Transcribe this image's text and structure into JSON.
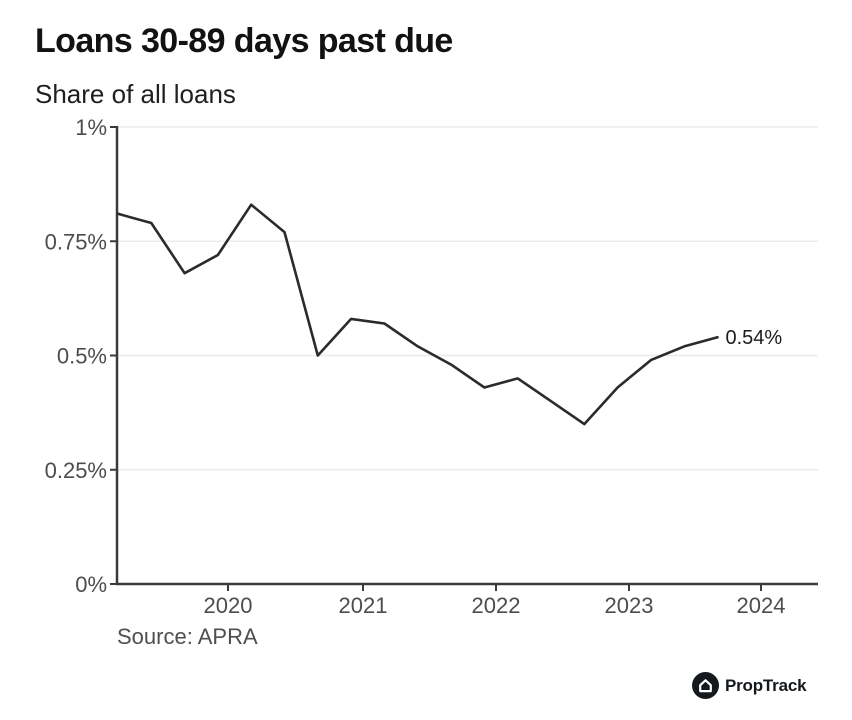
{
  "header": {
    "title": "Loans 30-89 days past due",
    "subtitle": "Share of all loans"
  },
  "footer": {
    "source": "Source: APRA",
    "brand": "PropTrack",
    "brand_icon": "house-icon"
  },
  "chart_data": {
    "type": "line",
    "title": "Loans 30-89 days past due",
    "subtitle": "Share of all loans",
    "source": "Source: APRA",
    "unit": "%",
    "x": [
      "Mar 2019",
      "Jun 2019",
      "Sep 2019",
      "Dec 2019",
      "Mar 2020",
      "Jun 2020",
      "Sep 2020",
      "Dec 2020",
      "Mar 2021",
      "Jun 2021",
      "Sep 2021",
      "Dec 2021",
      "Mar 2022",
      "Jun 2022",
      "Sep 2022",
      "Dec 2022",
      "Mar 2023",
      "Jun 2023",
      "Sep 2023"
    ],
    "values": [
      0.81,
      0.79,
      0.68,
      0.72,
      0.83,
      0.77,
      0.5,
      0.58,
      0.57,
      0.52,
      0.48,
      0.43,
      0.45,
      0.4,
      0.35,
      0.43,
      0.49,
      0.52,
      0.54
    ],
    "end_label": "0.54%",
    "ylim": [
      0,
      1
    ],
    "yticks": [
      {
        "value": 0,
        "label": "0%"
      },
      {
        "value": 0.25,
        "label": "0.25%"
      },
      {
        "value": 0.5,
        "label": "0.5%"
      },
      {
        "value": 0.75,
        "label": "0.75%"
      },
      {
        "value": 1,
        "label": "1%"
      }
    ],
    "xticks": [
      "2020",
      "2021",
      "2022",
      "2023",
      "2024"
    ],
    "grid": true,
    "legend": false,
    "colors": {
      "line": "#2b2b2b",
      "axis": "#3a3a3a",
      "grid": "#ebebeb",
      "tick_label": "#4d4d4d",
      "end_label": "#1c1c1c"
    }
  }
}
